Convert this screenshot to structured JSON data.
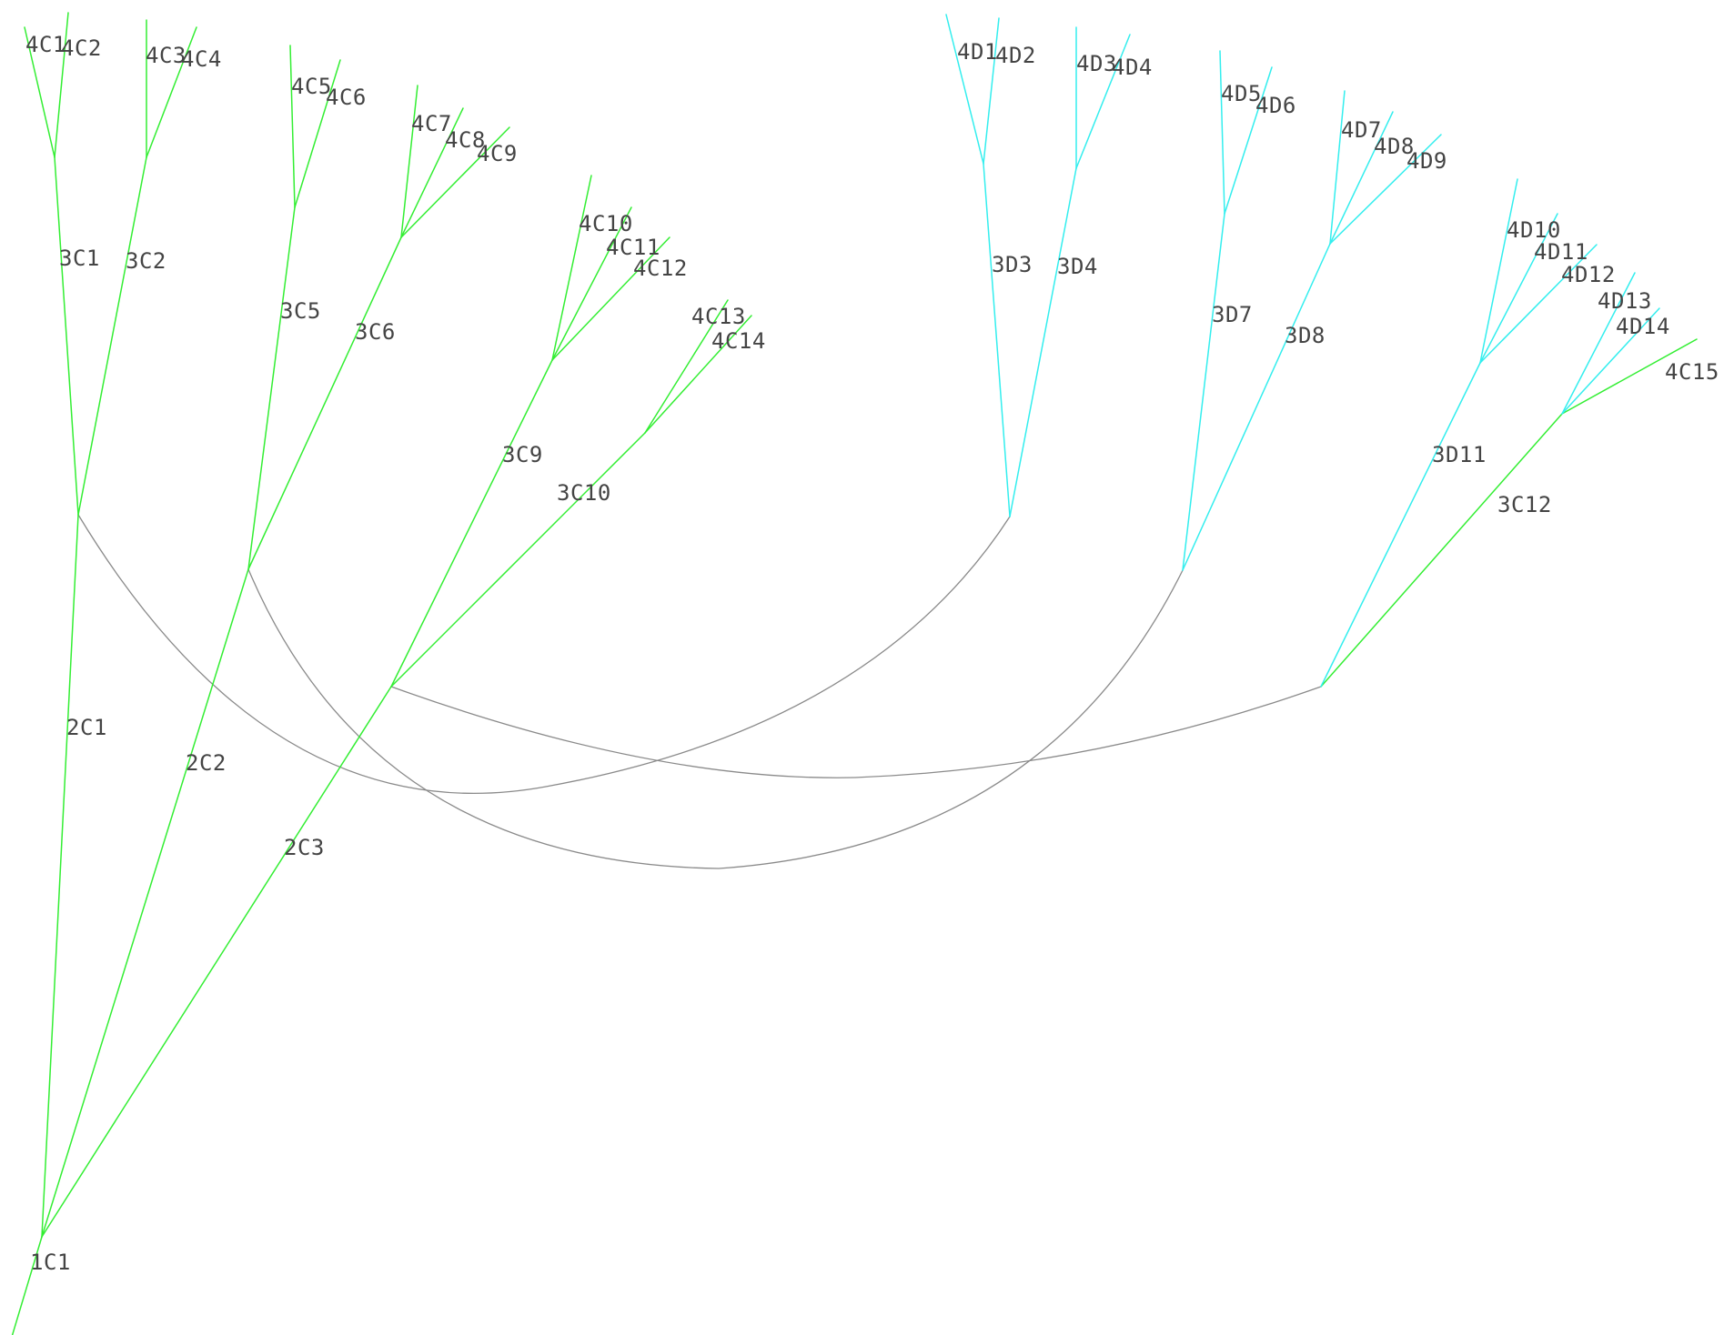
{
  "colors": {
    "green_branch": "#33ee33",
    "cyan_branch": "#33eeee",
    "connector": "#8a8a8a",
    "label": "#444444"
  },
  "labels": {
    "n1C1": "1C1",
    "n2C1": "2C1",
    "n2C2": "2C2",
    "n2C3": "2C3",
    "n3C1": "3C1",
    "n3C2": "3C2",
    "n3C5": "3C5",
    "n3C6": "3C6",
    "n3C9": "3C9",
    "n3C10": "3C10",
    "n3C12": "3C12",
    "n3D3": "3D3",
    "n3D4": "3D4",
    "n3D7": "3D7",
    "n3D8": "3D8",
    "n3D11": "3D11",
    "n4C1": "4C1",
    "n4C2": "4C2",
    "n4C3": "4C3",
    "n4C4": "4C4",
    "n4C5": "4C5",
    "n4C6": "4C6",
    "n4C7": "4C7",
    "n4C8": "4C8",
    "n4C9": "4C9",
    "n4C10": "4C10",
    "n4C11": "4C11",
    "n4C12": "4C12",
    "n4C13": "4C13",
    "n4C14": "4C14",
    "n4C15": "4C15",
    "n4D1": "4D1",
    "n4D2": "4D2",
    "n4D3": "4D3",
    "n4D4": "4D4",
    "n4D5": "4D5",
    "n4D6": "4D6",
    "n4D7": "4D7",
    "n4D8": "4D8",
    "n4D9": "4D9",
    "n4D10": "4D10",
    "n4D11": "4D11",
    "n4D12": "4D12",
    "n4D13": "4D13",
    "n4D14": "4D14"
  }
}
